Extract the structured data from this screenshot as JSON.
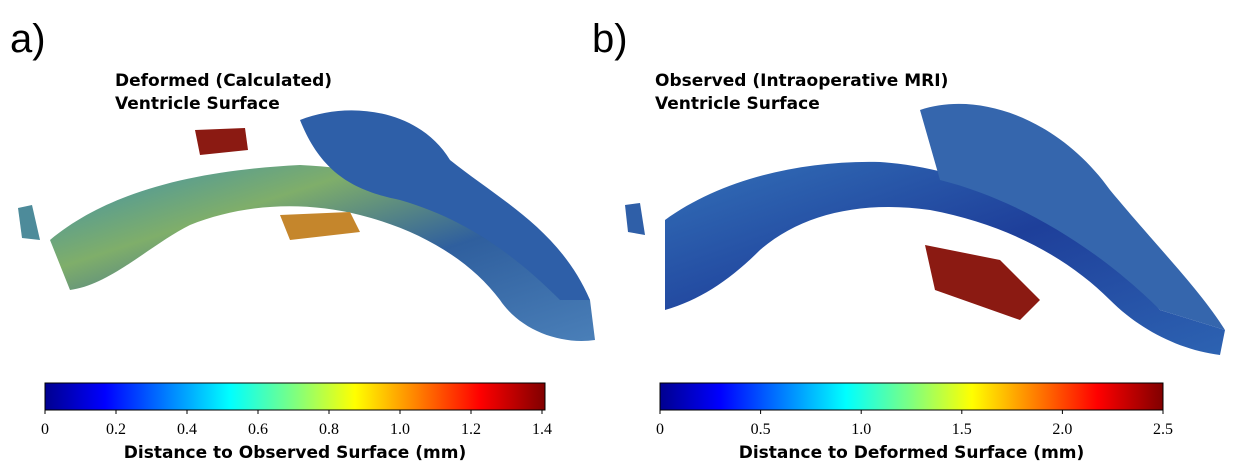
{
  "panels": [
    {
      "label": "a)",
      "title": [
        "Deformed (Calculated)",
        "Ventricle Surface"
      ],
      "colorbar": {
        "lim": [
          0,
          1.4
        ],
        "ticks": [
          0,
          0.2,
          0.4,
          0.6,
          0.8,
          {
            "value": 1,
            "label": "1.0"
          },
          1.2,
          1.4
        ],
        "label": "Distance to Observed Surface (mm)"
      }
    },
    {
      "label": "b)",
      "title": [
        "Observed (Intraoperative MRI)",
        "Ventricle Surface"
      ],
      "colorbar": {
        "lim": [
          0,
          2.5
        ],
        "ticks": [
          0,
          0.5,
          {
            "value": 1,
            "label": "1.0"
          },
          1.5,
          {
            "value": 2,
            "label": "2.0"
          },
          2.5
        ],
        "label": "Distance to Deformed Surface (mm)"
      }
    }
  ]
}
